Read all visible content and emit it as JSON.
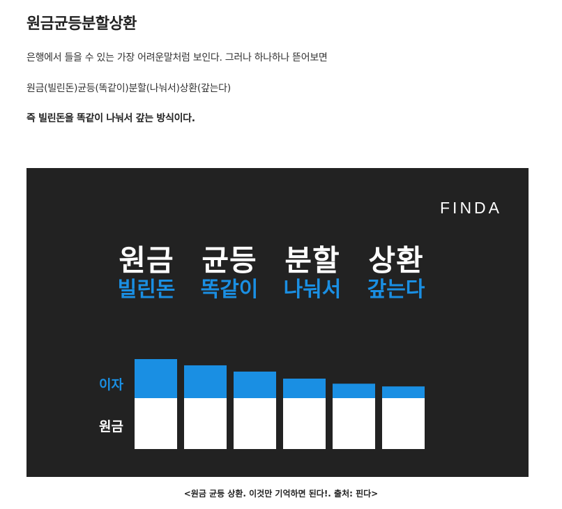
{
  "article": {
    "title": "원금균등분할상환",
    "para1": "은행에서 들을 수 있는 가장 어려운말처럼 보인다. 그러나 하나하나 뜯어보면",
    "para2": "원금(빌린돈)균등(똑같이)분할(나눠서)상환(갚는다)",
    "para3": "즉 빌린돈을 똑같이 나눠서 갚는 방식이다."
  },
  "banner": {
    "logo": "FINDA",
    "words": [
      {
        "word": "원금",
        "meaning": "빌린돈"
      },
      {
        "word": "균등",
        "meaning": "똑같이"
      },
      {
        "word": "분할",
        "meaning": "나눠서"
      },
      {
        "word": "상환",
        "meaning": "갚는다"
      }
    ],
    "colors": {
      "background": "#222222",
      "accent": "#1a8fe3",
      "principal": "#ffffff"
    }
  },
  "chart_data": {
    "type": "bar",
    "stacked": true,
    "categories": [
      "",
      "",
      "",
      "",
      "",
      ""
    ],
    "series": [
      {
        "name": "원금",
        "values": [
          1,
          1,
          1,
          1,
          1,
          1
        ]
      },
      {
        "name": "이자",
        "values": [
          1.0,
          0.84,
          0.68,
          0.5,
          0.37,
          0.3
        ]
      }
    ],
    "legend": "left"
  },
  "caption": "<원금 균등 상환. 이것만 기억하면 된다!. 출처: 핀다>"
}
